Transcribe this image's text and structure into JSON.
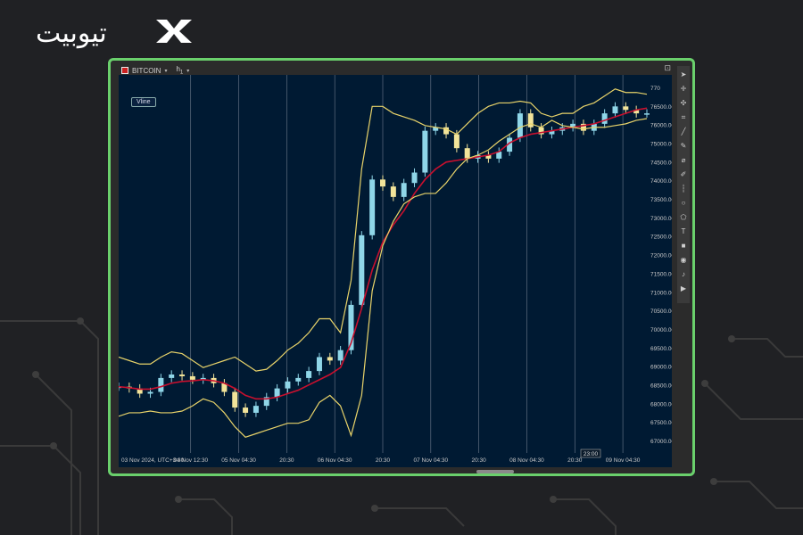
{
  "brand": {
    "name": "تیوبیت"
  },
  "toolbar": {
    "symbol": "BITCOIN",
    "timeframe": "h",
    "timeframe_sub": "1",
    "drop": "▾"
  },
  "tag": {
    "vline": "Vline"
  },
  "time_label": "23:00",
  "right_tools": [
    "arrow-icon",
    "crosshair-icon",
    "move-icon",
    "pointer-icon",
    "line-icon",
    "pen-icon",
    "brush-icon",
    "pencil-icon",
    "dotted-line-icon",
    "circle-icon",
    "shape-icon",
    "text-icon",
    "square-icon",
    "camera-icon",
    "bell-icon",
    "play-icon"
  ],
  "colors": {
    "plot_bg": "#001a33",
    "candle_up": "#8fd6e8",
    "candle_down": "#f2e49a",
    "band": "#e8d36a",
    "ma": "#c8102e",
    "vgrid": "#6e7b8c"
  },
  "chart_data": {
    "type": "line",
    "title": "",
    "x_tick_labels": [
      "03 Nov 2024, UTC+3:30",
      "04 Nov 12:30",
      "05 Nov 04:30",
      "20:30",
      "06 Nov 04:30",
      "20:30",
      "07 Nov 04:30",
      "20:30",
      "08 Nov 04:30",
      "20:30",
      "09 Nov 04:30"
    ],
    "y_tick_labels": [
      "770",
      "76500.00",
      "76000.00",
      "75000.00",
      "74500.00",
      "74000.00",
      "73500.00",
      "73000.00",
      "72500.00",
      "72000.00",
      "71500.00",
      "71000.00",
      "70500.00",
      "70000.00",
      "69500.00",
      "69000.00",
      "68500.00",
      "68000.00",
      "67500.00",
      "67000.00"
    ],
    "ylim": [
      66700,
      77200
    ],
    "x": [
      0,
      2,
      4,
      6,
      8,
      10,
      12,
      14,
      16,
      18,
      20,
      22,
      24,
      26,
      28,
      30,
      32,
      34,
      36,
      38,
      40,
      42,
      44,
      46,
      48,
      50,
      52,
      54,
      56,
      58,
      60,
      62,
      64,
      66,
      68,
      70,
      72,
      74,
      76,
      78,
      80,
      82,
      84,
      86,
      88,
      90,
      92,
      94,
      96,
      98,
      100
    ],
    "series": [
      {
        "values": [
          68450,
          68400,
          68250,
          68300,
          68700,
          68800,
          68750,
          68650,
          68700,
          68550,
          68300,
          67850,
          67700,
          67900,
          68150,
          68400,
          68600,
          68700,
          68900,
          69300,
          69200,
          69500,
          70800,
          72800,
          74400,
          74200,
          73900,
          74300,
          74600,
          75800,
          75900,
          75700,
          75300,
          75000,
          75100,
          75000,
          75200,
          75600,
          76300,
          75900,
          75700,
          75800,
          75900,
          76000,
          75800,
          76000,
          76300,
          76500,
          76400,
          76300,
          76300
        ]
      },
      {
        "values": [
          68450,
          68420,
          68380,
          68380,
          68450,
          68550,
          68600,
          68620,
          68650,
          68620,
          68550,
          68400,
          68200,
          68100,
          68100,
          68150,
          68250,
          68350,
          68500,
          68650,
          68800,
          69000,
          69700,
          70700,
          71800,
          72600,
          73100,
          73500,
          74000,
          74400,
          74700,
          74900,
          74950,
          75000,
          75050,
          75100,
          75200,
          75450,
          75600,
          75700,
          75750,
          75800,
          75850,
          75900,
          75950,
          76000,
          76100,
          76200,
          76300,
          76400,
          76450
        ]
      },
      {
        "values": [
          69300,
          69200,
          69100,
          69100,
          69300,
          69450,
          69400,
          69200,
          69000,
          69100,
          69200,
          69300,
          69100,
          68900,
          68950,
          69200,
          69500,
          69700,
          70000,
          70400,
          70400,
          70000,
          71500,
          74700,
          76500,
          76500,
          76300,
          76200,
          76100,
          75950,
          75900,
          75850,
          75700,
          76000,
          76300,
          76500,
          76600,
          76600,
          76650,
          76600,
          76300,
          76200,
          76300,
          76300,
          76500,
          76600,
          76800,
          77000,
          76900,
          76900,
          76850
        ]
      },
      {
        "values": [
          67600,
          67700,
          67700,
          67750,
          67700,
          67700,
          67750,
          67900,
          68100,
          68000,
          67700,
          67300,
          67000,
          67100,
          67200,
          67300,
          67400,
          67400,
          67500,
          68000,
          68200,
          67900,
          67050,
          68200,
          71200,
          72500,
          73200,
          73700,
          73900,
          74000,
          74000,
          74300,
          74700,
          75000,
          75100,
          75250,
          75500,
          75700,
          75900,
          76000,
          75900,
          76100,
          75950,
          75900,
          75850,
          75900,
          75900,
          75950,
          76000,
          76100,
          76150
        ]
      }
    ]
  }
}
